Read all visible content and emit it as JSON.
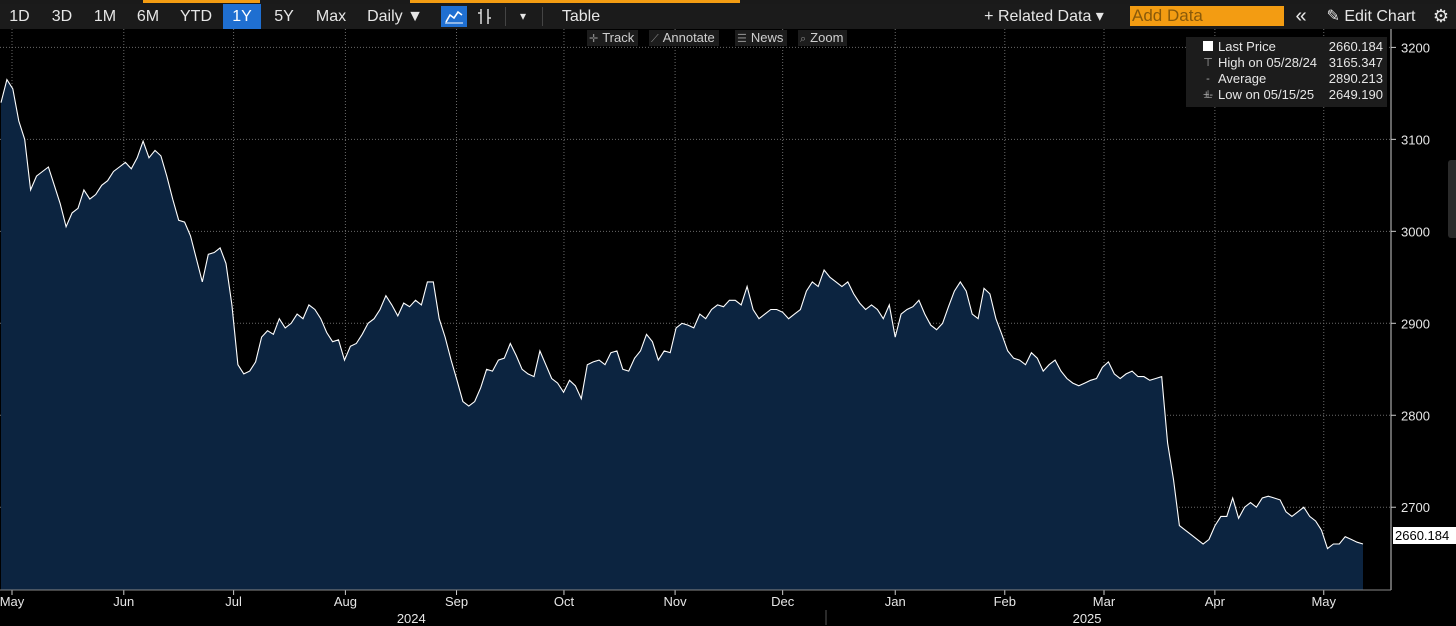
{
  "toolbar": {
    "ranges": [
      "1D",
      "3D",
      "1M",
      "6M",
      "YTD",
      "1Y",
      "5Y",
      "Max"
    ],
    "active_range": "1Y",
    "frequency": "Daily ▼",
    "dropdown_arrow": "▾",
    "table_label": "Table",
    "related_data": "+ Related Data ▾",
    "add_data_placeholder": "Add Data",
    "collapse_icon": "«",
    "edit_chart": "✎ Edit Chart",
    "settings_icon": "⚙"
  },
  "subtools": [
    {
      "icon": "✛",
      "label": "Track"
    },
    {
      "icon": "⟋",
      "label": "Annotate"
    },
    {
      "icon": "☰",
      "label": "News"
    },
    {
      "icon": "⌕",
      "label": "Zoom"
    }
  ],
  "legend": {
    "rows": [
      {
        "label": "Last Price",
        "value": "2660.184"
      },
      {
        "label": "High on 05/28/24",
        "value": "3165.347"
      },
      {
        "label": "Average",
        "value": "2890.213"
      },
      {
        "label": "Low on 05/15/25",
        "value": "2649.190"
      }
    ]
  },
  "last_price_tag": "2660.184",
  "chart_data": {
    "type": "area",
    "series": [
      {
        "name": "Last Price",
        "values": [
          3140,
          3165,
          3155,
          3120,
          3100,
          3045,
          3060,
          3065,
          3070,
          3050,
          3030,
          3005,
          3020,
          3025,
          3045,
          3035,
          3040,
          3050,
          3055,
          3065,
          3070,
          3075,
          3068,
          3080,
          3098,
          3080,
          3088,
          3082,
          3060,
          3035,
          3012,
          3010,
          2995,
          2970,
          2945,
          2975,
          2977,
          2982,
          2965,
          2920,
          2855,
          2845,
          2848,
          2858,
          2885,
          2892,
          2888,
          2905,
          2895,
          2900,
          2910,
          2905,
          2920,
          2915,
          2905,
          2890,
          2880,
          2882,
          2860,
          2875,
          2878,
          2888,
          2900,
          2905,
          2915,
          2930,
          2920,
          2908,
          2922,
          2918,
          2925,
          2920,
          2945,
          2945,
          2905,
          2885,
          2860,
          2838,
          2815,
          2810,
          2815,
          2830,
          2850,
          2848,
          2860,
          2862,
          2878,
          2865,
          2850,
          2845,
          2842,
          2870,
          2855,
          2840,
          2835,
          2825,
          2838,
          2832,
          2818,
          2855,
          2858,
          2860,
          2855,
          2868,
          2870,
          2850,
          2848,
          2862,
          2870,
          2888,
          2880,
          2860,
          2870,
          2868,
          2895,
          2900,
          2898,
          2895,
          2910,
          2905,
          2915,
          2920,
          2918,
          2925,
          2925,
          2920,
          2940,
          2915,
          2905,
          2910,
          2915,
          2915,
          2912,
          2905,
          2910,
          2915,
          2935,
          2945,
          2940,
          2958,
          2950,
          2945,
          2940,
          2945,
          2932,
          2922,
          2915,
          2920,
          2915,
          2905,
          2920,
          2885,
          2910,
          2915,
          2918,
          2925,
          2910,
          2898,
          2893,
          2900,
          2918,
          2935,
          2945,
          2935,
          2910,
          2905,
          2938,
          2932,
          2905,
          2888,
          2870,
          2862,
          2860,
          2855,
          2868,
          2862,
          2848,
          2855,
          2860,
          2848,
          2840,
          2835,
          2832,
          2835,
          2838,
          2840,
          2852,
          2858,
          2845,
          2840,
          2845,
          2848,
          2842,
          2842,
          2838,
          2840,
          2842,
          2770,
          2730,
          2680,
          2675,
          2670,
          2665,
          2660,
          2665,
          2680,
          2690,
          2690,
          2710,
          2688,
          2700,
          2705,
          2700,
          2710,
          2712,
          2710,
          2708,
          2695,
          2690,
          2695,
          2700,
          2690,
          2685,
          2675,
          2655,
          2660,
          2660,
          2668,
          2665,
          2662,
          2660
        ]
      }
    ],
    "x_ticks": [
      {
        "label": "May",
        "pos": 0.0
      },
      {
        "label": "Jun",
        "pos": 0.0845
      },
      {
        "label": "Jul",
        "pos": 0.1675
      },
      {
        "label": "Aug",
        "pos": 0.252
      },
      {
        "label": "Sep",
        "pos": 0.336
      },
      {
        "label": "Oct",
        "pos": 0.4172
      },
      {
        "label": "Nov",
        "pos": 0.5012
      },
      {
        "label": "Dec",
        "pos": 0.5825
      },
      {
        "label": "Jan",
        "pos": 0.6676
      },
      {
        "label": "Feb",
        "pos": 0.7504
      },
      {
        "label": "Mar",
        "pos": 0.8254
      },
      {
        "label": "Apr",
        "pos": 0.9092
      },
      {
        "label": "May",
        "pos": 0.9915
      }
    ],
    "year_labels": [
      {
        "label": "2024",
        "pos": 0.3018
      },
      {
        "label": "2025",
        "pos": 0.8126
      }
    ],
    "y_ticks": [
      2700,
      2800,
      2900,
      3000,
      3100,
      3200
    ],
    "ylim": [
      2610,
      3220
    ],
    "grid": true,
    "legend_position": "top-right",
    "colors": {
      "line": "#ffffff",
      "fill": "#0c2440",
      "grid": "#6a6a6a",
      "background": "#000000"
    }
  }
}
